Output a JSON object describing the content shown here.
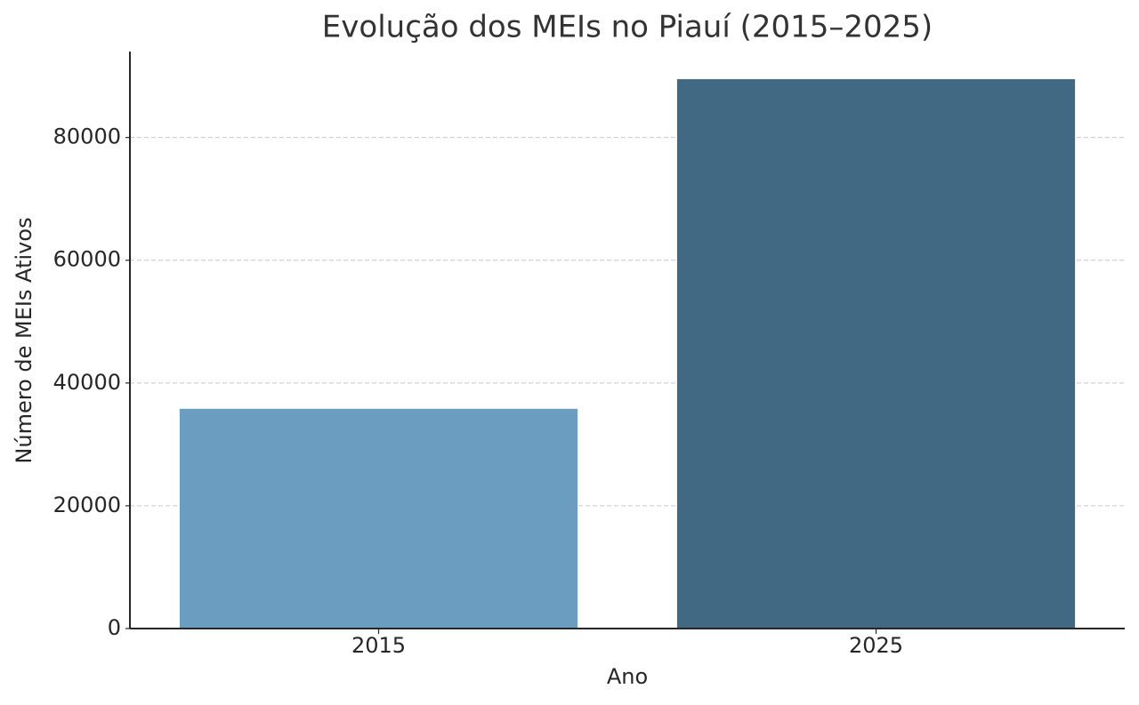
{
  "chart_data": {
    "type": "bar",
    "title": "Evolução dos MEIs no Piauí (2015–2025)",
    "x_label": "Ano",
    "y_label": "Número de MEIs Ativos",
    "categories": [
      "2015",
      "2025"
    ],
    "values": [
      35800,
      89500
    ],
    "colors": [
      "#6b9dc0",
      "#426984"
    ],
    "ylim": [
      0,
      94000
    ],
    "yticks": [
      0,
      20000,
      40000,
      60000,
      80000
    ],
    "grid": true
  }
}
